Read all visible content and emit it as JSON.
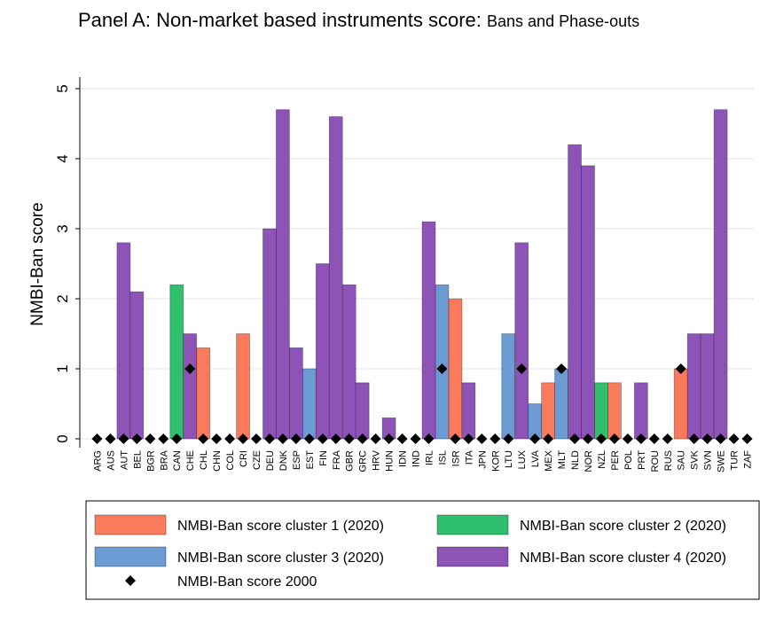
{
  "chart_data": {
    "type": "bar",
    "title": "Panel A: Non-market based instruments score:",
    "subtitle": "Bans and Phase-outs",
    "y_label": "NMBI-Ban score",
    "categories": [
      "ARG",
      "AUS",
      "AUT",
      "BEL",
      "BGR",
      "BRA",
      "CAN",
      "CHE",
      "CHL",
      "CHN",
      "COL",
      "CRI",
      "CZE",
      "DEU",
      "DNK",
      "ESP",
      "EST",
      "FIN",
      "FRA",
      "GBR",
      "GRC",
      "HRV",
      "HUN",
      "IDN",
      "IND",
      "IRL",
      "ISL",
      "ISR",
      "ITA",
      "JPN",
      "KOR",
      "LTU",
      "LUX",
      "LVA",
      "MEX",
      "MLT",
      "NLD",
      "NOR",
      "NZL",
      "PER",
      "POL",
      "PRT",
      "ROU",
      "RUS",
      "SAU",
      "SVK",
      "SVN",
      "SWE",
      "TUR",
      "ZAF"
    ],
    "series": [
      {
        "name": "NMBI-Ban score cluster 1 (2020)",
        "color": "#fa7b5c",
        "values": [
          null,
          null,
          null,
          null,
          null,
          null,
          null,
          null,
          1.3,
          null,
          null,
          1.5,
          null,
          null,
          null,
          null,
          null,
          null,
          null,
          null,
          null,
          null,
          null,
          null,
          null,
          null,
          null,
          2.0,
          null,
          null,
          null,
          null,
          null,
          null,
          0.8,
          null,
          null,
          null,
          null,
          0.8,
          null,
          null,
          null,
          null,
          1.0,
          null,
          null,
          null,
          null,
          null
        ]
      },
      {
        "name": "NMBI-Ban score cluster 2 (2020)",
        "color": "#2fbf6d",
        "values": [
          null,
          null,
          null,
          null,
          null,
          null,
          2.2,
          null,
          null,
          null,
          null,
          null,
          null,
          null,
          null,
          null,
          null,
          null,
          null,
          null,
          null,
          null,
          null,
          null,
          null,
          null,
          null,
          null,
          null,
          null,
          null,
          null,
          null,
          null,
          null,
          null,
          null,
          null,
          0.8,
          null,
          null,
          null,
          null,
          null,
          null,
          null,
          null,
          null,
          null,
          null
        ]
      },
      {
        "name": "NMBI-Ban score cluster 3 (2020)",
        "color": "#6b9bd2",
        "values": [
          null,
          null,
          null,
          null,
          null,
          null,
          null,
          null,
          null,
          null,
          null,
          null,
          null,
          null,
          null,
          null,
          1.0,
          null,
          null,
          null,
          null,
          null,
          null,
          null,
          null,
          null,
          2.2,
          null,
          null,
          null,
          null,
          1.5,
          null,
          0.5,
          null,
          1.0,
          null,
          null,
          null,
          null,
          null,
          null,
          null,
          null,
          null,
          null,
          null,
          null,
          null,
          null
        ]
      },
      {
        "name": "NMBI-Ban score cluster 4 (2020)",
        "color": "#8d53b6",
        "values": [
          null,
          null,
          2.8,
          2.1,
          null,
          null,
          null,
          1.5,
          null,
          null,
          null,
          null,
          null,
          3.0,
          4.7,
          1.3,
          null,
          2.5,
          4.6,
          2.2,
          0.8,
          null,
          0.3,
          null,
          null,
          3.1,
          null,
          null,
          0.8,
          null,
          null,
          null,
          2.8,
          null,
          null,
          null,
          4.2,
          3.9,
          null,
          null,
          null,
          0.8,
          null,
          null,
          null,
          1.5,
          1.5,
          4.7,
          null,
          null
        ]
      },
      {
        "name": "NMBI-Ban score 2000",
        "color": "#000000",
        "marker": "diamond",
        "values": [
          0,
          0,
          0,
          0,
          0,
          0,
          0,
          1,
          0,
          0,
          0,
          0,
          0,
          0,
          0,
          0,
          0,
          0,
          0,
          0,
          0,
          0,
          0,
          0,
          0,
          0,
          1,
          0,
          0,
          0,
          0,
          0,
          1,
          0,
          0,
          1,
          0,
          0,
          0,
          0,
          0,
          0,
          0,
          0,
          1,
          0,
          0,
          0,
          0,
          0
        ]
      }
    ],
    "ylim": [
      0,
      5
    ],
    "yticks": [
      0,
      1,
      2,
      3,
      4,
      5
    ],
    "grid": true
  }
}
